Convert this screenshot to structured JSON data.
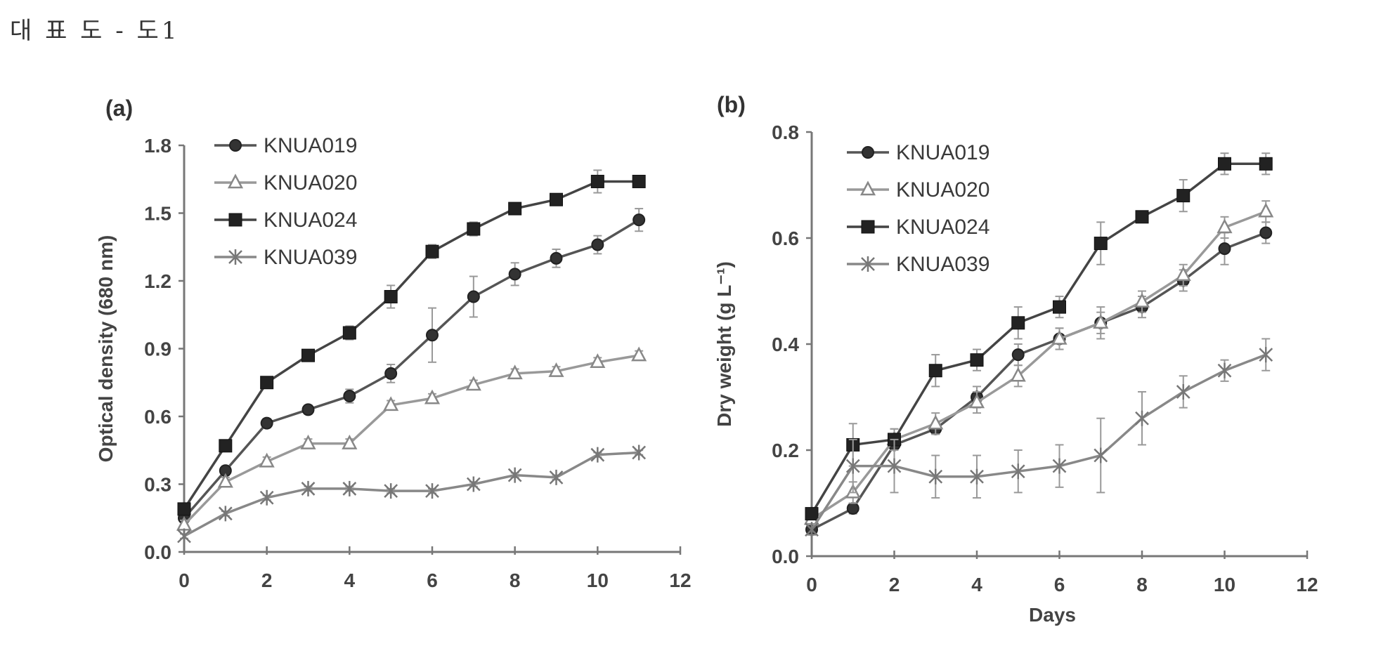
{
  "header": {
    "title": "대 표 도 - 도1"
  },
  "legend_labels": [
    "KNUA019",
    "KNUA020",
    "KNUA024",
    "KNUA039"
  ],
  "chart_data": [
    {
      "type": "line",
      "panel_label": "(a)",
      "title": "",
      "xlabel": "",
      "ylabel": "Optical density (680 nm)",
      "xlim": [
        0,
        12
      ],
      "ylim": [
        0,
        1.8
      ],
      "x_ticks": [
        "0",
        "2",
        "4",
        "6",
        "8",
        "10",
        "12"
      ],
      "y_ticks": [
        "0.0",
        "0.3",
        "0.6",
        "0.9",
        "1.2",
        "1.5",
        "1.8"
      ],
      "x": [
        0,
        1,
        2,
        3,
        4,
        5,
        6,
        7,
        8,
        9,
        10,
        11
      ],
      "series": [
        {
          "name": "KNUA019",
          "marker": "circle-filled",
          "values": [
            0.15,
            0.36,
            0.57,
            0.63,
            0.69,
            0.79,
            0.96,
            1.13,
            1.23,
            1.3,
            1.36,
            1.47
          ],
          "errors": [
            0.02,
            0.02,
            0.02,
            0.02,
            0.03,
            0.04,
            0.12,
            0.09,
            0.05,
            0.04,
            0.04,
            0.05
          ]
        },
        {
          "name": "KNUA020",
          "marker": "triangle-open",
          "values": [
            0.12,
            0.31,
            0.4,
            0.48,
            0.48,
            0.65,
            0.68,
            0.74,
            0.79,
            0.8,
            0.84,
            0.87
          ],
          "errors": [
            0.02,
            0.02,
            0.02,
            0.02,
            0.02,
            0.02,
            0.02,
            0.02,
            0.02,
            0.02,
            0.02,
            0.02
          ]
        },
        {
          "name": "KNUA024",
          "marker": "square-filled",
          "values": [
            0.19,
            0.47,
            0.75,
            0.87,
            0.97,
            1.13,
            1.33,
            1.43,
            1.52,
            1.56,
            1.64,
            1.64
          ],
          "errors": [
            0.02,
            0.02,
            0.02,
            0.02,
            0.03,
            0.05,
            0.03,
            0.03,
            0.02,
            0.02,
            0.05,
            0.02
          ]
        },
        {
          "name": "KNUA039",
          "marker": "star",
          "values": [
            0.07,
            0.17,
            0.24,
            0.28,
            0.28,
            0.27,
            0.27,
            0.3,
            0.34,
            0.33,
            0.43,
            0.44
          ],
          "errors": [
            0.01,
            0.01,
            0.01,
            0.01,
            0.01,
            0.01,
            0.01,
            0.01,
            0.01,
            0.01,
            0.01,
            0.01
          ]
        }
      ]
    },
    {
      "type": "line",
      "panel_label": "(b)",
      "title": "",
      "xlabel": "Days",
      "ylabel": "Dry weight (g L⁻¹)",
      "xlim": [
        0,
        12
      ],
      "ylim": [
        0,
        0.8
      ],
      "x_ticks": [
        "0",
        "2",
        "4",
        "6",
        "8",
        "10",
        "12"
      ],
      "y_ticks": [
        "0.0",
        "0.2",
        "0.4",
        "0.6",
        "0.8"
      ],
      "x": [
        0,
        1,
        2,
        3,
        4,
        5,
        6,
        7,
        8,
        9,
        10,
        11
      ],
      "series": [
        {
          "name": "KNUA019",
          "marker": "circle-filled",
          "values": [
            0.05,
            0.09,
            0.21,
            0.24,
            0.3,
            0.38,
            0.41,
            0.44,
            0.47,
            0.52,
            0.58,
            0.61
          ],
          "errors": [
            0.01,
            0.01,
            0.01,
            0.01,
            0.02,
            0.02,
            0.02,
            0.03,
            0.02,
            0.02,
            0.03,
            0.02
          ]
        },
        {
          "name": "KNUA020",
          "marker": "triangle-open",
          "values": [
            0.07,
            0.12,
            0.22,
            0.25,
            0.29,
            0.34,
            0.41,
            0.44,
            0.48,
            0.53,
            0.62,
            0.65
          ],
          "errors": [
            0.01,
            0.02,
            0.02,
            0.02,
            0.02,
            0.02,
            0.02,
            0.02,
            0.02,
            0.02,
            0.02,
            0.02
          ]
        },
        {
          "name": "KNUA024",
          "marker": "square-filled",
          "values": [
            0.08,
            0.21,
            0.22,
            0.35,
            0.37,
            0.44,
            0.47,
            0.59,
            0.64,
            0.68,
            0.74,
            0.74
          ],
          "errors": [
            0.01,
            0.04,
            0.02,
            0.03,
            0.02,
            0.03,
            0.02,
            0.04,
            0.01,
            0.03,
            0.02,
            0.02
          ]
        },
        {
          "name": "KNUA039",
          "marker": "star",
          "values": [
            0.05,
            0.17,
            0.17,
            0.15,
            0.15,
            0.16,
            0.17,
            0.19,
            0.26,
            0.31,
            0.35,
            0.38
          ],
          "errors": [
            0.01,
            0.05,
            0.05,
            0.04,
            0.04,
            0.04,
            0.04,
            0.07,
            0.05,
            0.03,
            0.02,
            0.03
          ]
        }
      ]
    }
  ]
}
